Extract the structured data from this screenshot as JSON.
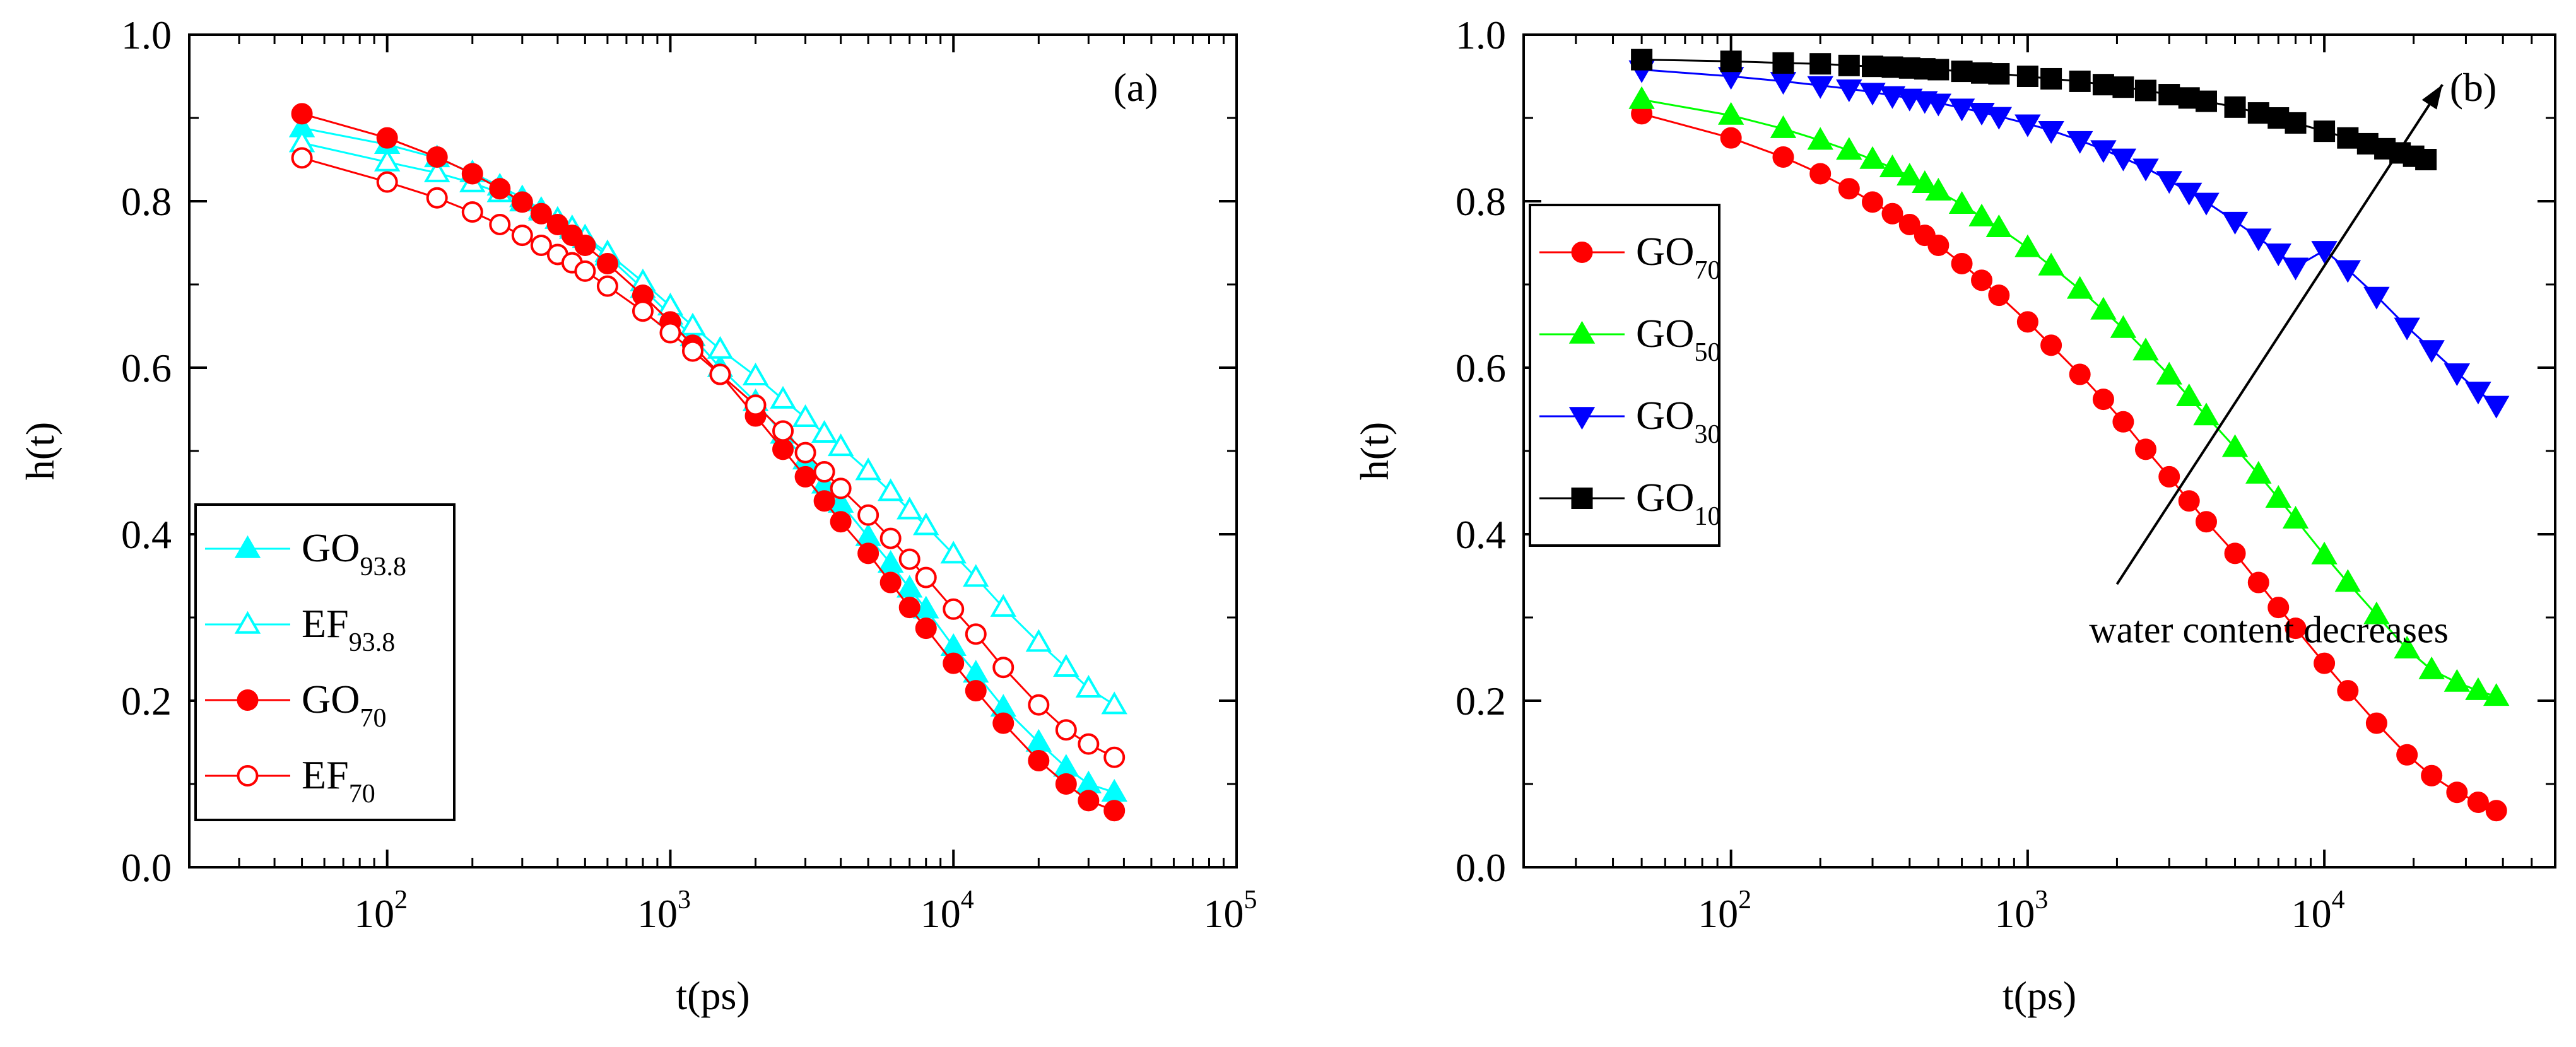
{
  "chart_data": [
    {
      "type": "scatter",
      "panel_label": "(a)",
      "xlabel": "t(ps)",
      "ylabel": "h(t)",
      "xscale": "log",
      "xlim": [
        20,
        100000
      ],
      "ylim": [
        0.0,
        1.0
      ],
      "xticks": [
        100,
        1000,
        10000,
        100000
      ],
      "xtick_labels": [
        {
          "base": "10",
          "exp": "2"
        },
        {
          "base": "10",
          "exp": "3"
        },
        {
          "base": "10",
          "exp": "4"
        },
        {
          "base": "10",
          "exp": "5"
        }
      ],
      "yticks": [
        "0.0",
        "0.2",
        "0.4",
        "0.6",
        "0.8",
        "1.0"
      ],
      "legend_position": "lower-left",
      "grid": false,
      "series": [
        {
          "name": "GO",
          "sub": "93.8",
          "color": "#00ffff",
          "marker": "triangle-up",
          "filled": true,
          "x": [
            50,
            100,
            150,
            200,
            250,
            300,
            350,
            400,
            450,
            500,
            600,
            800,
            1000,
            1200,
            1500,
            2000,
            2500,
            3000,
            3500,
            4000,
            5000,
            6000,
            7000,
            8000,
            10000,
            12000,
            15000,
            20000,
            25000,
            30000,
            37000
          ],
          "y": [
            0.888,
            0.868,
            0.852,
            0.834,
            0.818,
            0.804,
            0.79,
            0.778,
            0.766,
            0.755,
            0.734,
            0.695,
            0.663,
            0.637,
            0.6,
            0.559,
            0.52,
            0.489,
            0.46,
            0.437,
            0.397,
            0.365,
            0.335,
            0.31,
            0.265,
            0.233,
            0.192,
            0.15,
            0.12,
            0.1,
            0.09
          ]
        },
        {
          "name": "EF",
          "sub": "93.8",
          "color": "#00ffff",
          "marker": "triangle-up",
          "filled": false,
          "x": [
            50,
            100,
            150,
            200,
            250,
            300,
            350,
            400,
            450,
            500,
            600,
            800,
            1000,
            1200,
            1500,
            2000,
            2500,
            3000,
            3500,
            4000,
            5000,
            6000,
            7000,
            8000,
            10000,
            12000,
            15000,
            20000,
            25000,
            30000,
            37000
          ],
          "y": [
            0.87,
            0.847,
            0.834,
            0.822,
            0.81,
            0.799,
            0.788,
            0.778,
            0.768,
            0.757,
            0.738,
            0.703,
            0.674,
            0.65,
            0.622,
            0.59,
            0.562,
            0.54,
            0.521,
            0.505,
            0.476,
            0.451,
            0.429,
            0.41,
            0.376,
            0.348,
            0.312,
            0.27,
            0.24,
            0.215,
            0.195
          ]
        },
        {
          "name": "GO",
          "sub": "70",
          "color": "#ff0000",
          "marker": "circle",
          "filled": true,
          "x": [
            50,
            100,
            150,
            200,
            250,
            300,
            350,
            400,
            450,
            500,
            600,
            800,
            1000,
            1200,
            1500,
            2000,
            2500,
            3000,
            3500,
            4000,
            5000,
            6000,
            7000,
            8000,
            10000,
            12000,
            15000,
            20000,
            25000,
            30000,
            37000
          ],
          "y": [
            0.905,
            0.876,
            0.853,
            0.833,
            0.815,
            0.799,
            0.785,
            0.772,
            0.759,
            0.747,
            0.725,
            0.687,
            0.655,
            0.627,
            0.592,
            0.542,
            0.502,
            0.469,
            0.44,
            0.415,
            0.377,
            0.342,
            0.312,
            0.287,
            0.245,
            0.212,
            0.173,
            0.128,
            0.1,
            0.08,
            0.068
          ]
        },
        {
          "name": "EF",
          "sub": "70",
          "color": "#ff0000",
          "marker": "circle",
          "filled": false,
          "x": [
            50,
            100,
            150,
            200,
            250,
            300,
            350,
            400,
            450,
            500,
            600,
            800,
            1000,
            1200,
            1500,
            2000,
            2500,
            3000,
            3500,
            4000,
            5000,
            6000,
            7000,
            8000,
            10000,
            12000,
            15000,
            20000,
            25000,
            30000,
            37000
          ],
          "y": [
            0.852,
            0.823,
            0.804,
            0.787,
            0.772,
            0.759,
            0.747,
            0.736,
            0.726,
            0.716,
            0.698,
            0.668,
            0.642,
            0.62,
            0.592,
            0.555,
            0.524,
            0.498,
            0.475,
            0.455,
            0.423,
            0.395,
            0.37,
            0.348,
            0.31,
            0.28,
            0.24,
            0.195,
            0.165,
            0.148,
            0.132
          ]
        }
      ]
    },
    {
      "type": "scatter",
      "panel_label": "(b)",
      "xlabel": "t(ps)",
      "ylabel": "h(t)",
      "xscale": "log",
      "xlim": [
        20,
        60000
      ],
      "ylim": [
        0.0,
        1.0
      ],
      "xticks": [
        100,
        1000,
        10000
      ],
      "xtick_labels": [
        {
          "base": "10",
          "exp": "2"
        },
        {
          "base": "10",
          "exp": "3"
        },
        {
          "base": "10",
          "exp": "4"
        }
      ],
      "yticks": [
        "0.0",
        "0.2",
        "0.4",
        "0.6",
        "0.8",
        "1.0"
      ],
      "legend_position": "upper-left",
      "grid": false,
      "annotation": {
        "text": "water content decreases",
        "arrow_from": [
          2000,
          0.34
        ],
        "arrow_to": [
          25000,
          0.94
        ],
        "text_at": [
          6500,
          0.27
        ]
      },
      "series": [
        {
          "name": "GO",
          "sub": "70",
          "color": "#ff0000",
          "marker": "circle",
          "filled": true,
          "x": [
            50,
            100,
            150,
            200,
            250,
            300,
            350,
            400,
            450,
            500,
            600,
            700,
            800,
            1000,
            1200,
            1500,
            1800,
            2100,
            2500,
            3000,
            3500,
            4000,
            5000,
            6000,
            7000,
            8000,
            10000,
            12000,
            15000,
            19000,
            23000,
            28000,
            33000,
            38000
          ],
          "y": [
            0.905,
            0.876,
            0.853,
            0.833,
            0.815,
            0.799,
            0.785,
            0.772,
            0.759,
            0.747,
            0.725,
            0.705,
            0.687,
            0.655,
            0.627,
            0.592,
            0.562,
            0.535,
            0.502,
            0.469,
            0.44,
            0.415,
            0.377,
            0.342,
            0.312,
            0.287,
            0.245,
            0.212,
            0.173,
            0.135,
            0.11,
            0.09,
            0.078,
            0.068
          ]
        },
        {
          "name": "GO",
          "sub": "50",
          "color": "#00ff00",
          "marker": "triangle-up",
          "filled": true,
          "x": [
            50,
            100,
            150,
            200,
            250,
            300,
            350,
            400,
            450,
            500,
            600,
            700,
            800,
            1000,
            1200,
            1500,
            1800,
            2100,
            2500,
            3000,
            3500,
            4000,
            5000,
            6000,
            7000,
            8000,
            10000,
            12000,
            15000,
            19000,
            23000,
            28000,
            33000,
            38000
          ],
          "y": [
            0.922,
            0.903,
            0.887,
            0.873,
            0.861,
            0.85,
            0.84,
            0.83,
            0.821,
            0.812,
            0.796,
            0.781,
            0.768,
            0.744,
            0.722,
            0.694,
            0.669,
            0.647,
            0.62,
            0.591,
            0.565,
            0.542,
            0.504,
            0.472,
            0.443,
            0.418,
            0.375,
            0.342,
            0.303,
            0.262,
            0.237,
            0.222,
            0.212,
            0.205
          ]
        },
        {
          "name": "GO",
          "sub": "30",
          "color": "#0000ff",
          "marker": "triangle-down",
          "filled": true,
          "x": [
            50,
            100,
            150,
            200,
            250,
            300,
            350,
            400,
            450,
            500,
            600,
            700,
            800,
            1000,
            1200,
            1500,
            1800,
            2100,
            2500,
            3000,
            3500,
            4000,
            5000,
            6000,
            7000,
            8000,
            10000,
            12000,
            15000,
            19000,
            23000,
            28000,
            33000,
            38000
          ],
          "y": [
            0.958,
            0.95,
            0.944,
            0.939,
            0.935,
            0.931,
            0.927,
            0.924,
            0.921,
            0.918,
            0.912,
            0.907,
            0.902,
            0.893,
            0.885,
            0.873,
            0.862,
            0.852,
            0.84,
            0.825,
            0.811,
            0.799,
            0.776,
            0.756,
            0.738,
            0.721,
            0.741,
            0.718,
            0.686,
            0.649,
            0.622,
            0.594,
            0.572,
            0.555
          ]
        },
        {
          "name": "GO",
          "sub": "10",
          "color": "#000000",
          "marker": "square",
          "filled": true,
          "x": [
            50,
            100,
            150,
            200,
            250,
            300,
            350,
            400,
            450,
            500,
            600,
            700,
            800,
            1000,
            1200,
            1500,
            1800,
            2100,
            2500,
            3000,
            3500,
            4000,
            5000,
            6000,
            7000,
            8000,
            10000,
            12000,
            14000,
            16000,
            18000,
            20000,
            22000
          ],
          "y": [
            0.97,
            0.968,
            0.966,
            0.965,
            0.963,
            0.962,
            0.961,
            0.96,
            0.959,
            0.958,
            0.956,
            0.954,
            0.953,
            0.95,
            0.947,
            0.944,
            0.94,
            0.937,
            0.933,
            0.928,
            0.924,
            0.92,
            0.913,
            0.906,
            0.9,
            0.894,
            0.884,
            0.876,
            0.869,
            0.863,
            0.858,
            0.854,
            0.85
          ]
        }
      ]
    }
  ]
}
